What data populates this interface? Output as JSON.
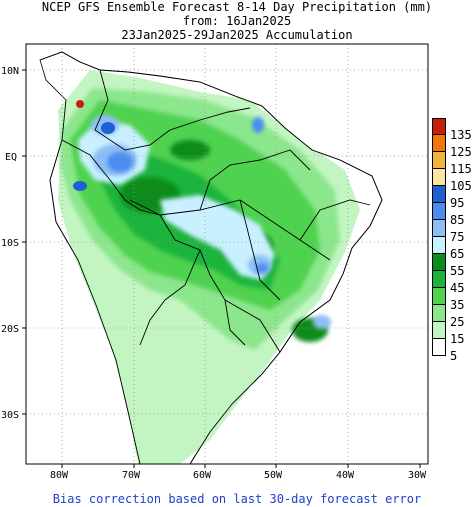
{
  "title": {
    "line1": "NCEP GFS Ensemble Forecast 8-14 Day Precipitation (mm)",
    "line2": "from: 16Jan2025",
    "line3": "23Jan2025-29Jan2025 Accumulation"
  },
  "footer": "Bias correction based on last 30-day forecast error",
  "axes": {
    "lat_labels": [
      "10N",
      "EQ",
      "10S",
      "20S",
      "30S"
    ],
    "lon_labels": [
      "80W",
      "70W",
      "60W",
      "50W",
      "40W",
      "30W"
    ]
  },
  "legend": {
    "labels": [
      "135",
      "125",
      "115",
      "105",
      "95",
      "85",
      "75",
      "65",
      "55",
      "45",
      "35",
      "25",
      "15",
      "5"
    ],
    "colors": [
      "#c81e0a",
      "#f0780a",
      "#f0b43c",
      "#fae6a0",
      "#1e5fd2",
      "#4b8cf0",
      "#8cbef5",
      "#c8f0ff",
      "#0a8c1e",
      "#1eb43c",
      "#50d250",
      "#8ce68c",
      "#c3f5c3",
      "#ffffff"
    ]
  },
  "map_colors": {
    "land": "#ffffff",
    "ocean": "#ffffff",
    "grid": "#999999",
    "border": "#000000"
  }
}
